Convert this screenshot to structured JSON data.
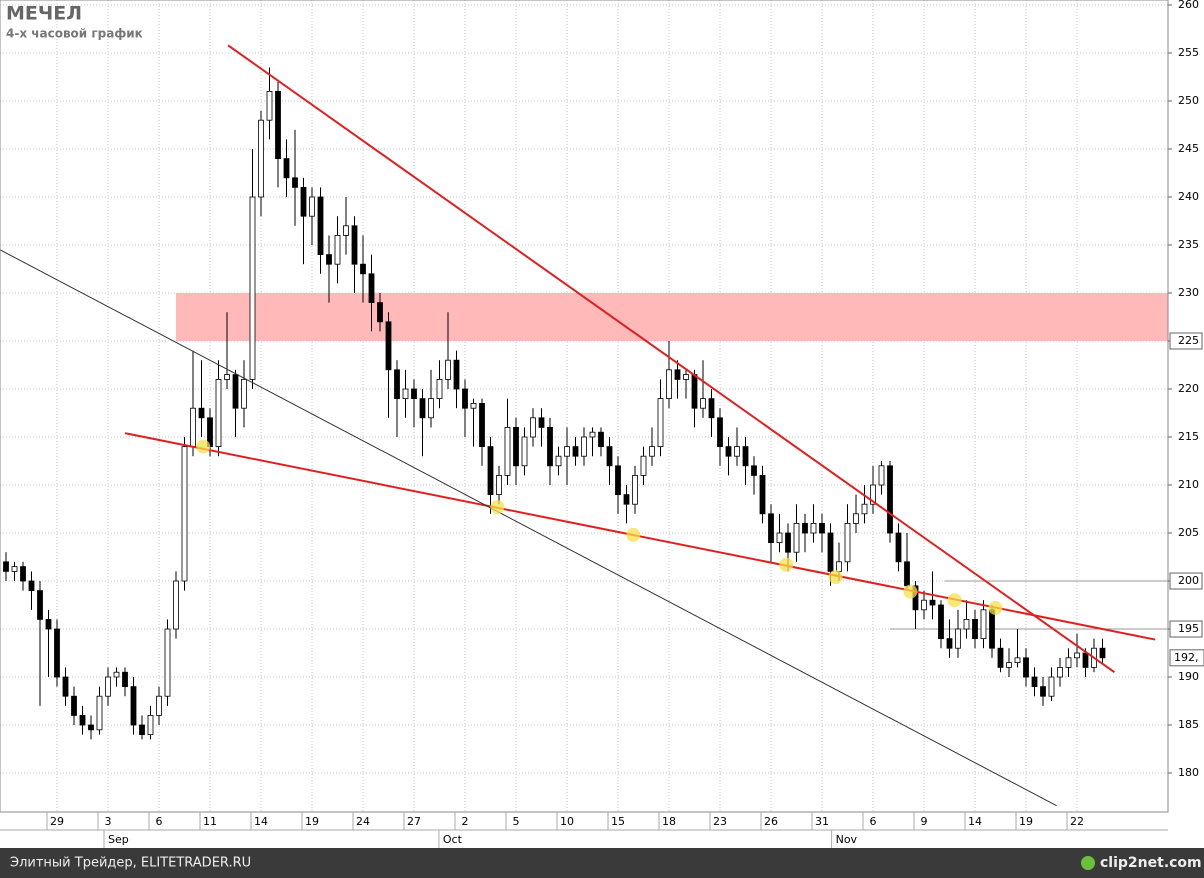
{
  "chart_data": {
    "type": "candlestick",
    "title": "МЕЧЕЛ",
    "subtitle": "4-х часовой график",
    "footer": "Элитный Трейдер, ELITETRADER.RU",
    "watermark": "clip2net.com",
    "last_price_label": "192,",
    "xlim": [
      -3.353,
      65.353
    ],
    "ylim": [
      175.94,
      260.52
    ],
    "yticks": [
      180,
      185,
      190,
      195,
      200,
      205,
      210,
      215,
      220,
      225,
      230,
      235,
      240,
      245,
      250,
      255,
      260
    ],
    "boxed_yticks": [
      225,
      200,
      195
    ],
    "xticks": [
      {
        "value": 0,
        "label": "29"
      },
      {
        "value": 3,
        "label": "3"
      },
      {
        "value": 6,
        "label": "6"
      },
      {
        "value": 9,
        "label": "11"
      },
      {
        "value": 12,
        "label": "14"
      },
      {
        "value": 15,
        "label": "19"
      },
      {
        "value": 18,
        "label": "24"
      },
      {
        "value": 21,
        "label": "27"
      },
      {
        "value": 24,
        "label": "2"
      },
      {
        "value": 27,
        "label": "5"
      },
      {
        "value": 30,
        "label": "10"
      },
      {
        "value": 33,
        "label": "15"
      },
      {
        "value": 36,
        "label": "18"
      },
      {
        "value": 39,
        "label": "23"
      },
      {
        "value": 42,
        "label": "26"
      },
      {
        "value": 45,
        "label": "31"
      },
      {
        "value": 48,
        "label": "6"
      },
      {
        "value": 51,
        "label": "9"
      },
      {
        "value": 54,
        "label": "14"
      },
      {
        "value": 57,
        "label": "19"
      },
      {
        "value": 60,
        "label": "22"
      }
    ],
    "month_labels": [
      {
        "x": 3,
        "label": "Sep"
      },
      {
        "x": 22.7,
        "label": "Oct"
      },
      {
        "x": 45.8,
        "label": "Nov"
      }
    ],
    "grid": true,
    "up_color": "#ffffff",
    "down_color": "#000000",
    "zone": {
      "from_x": 7,
      "ylim": [
        225,
        230
      ],
      "color": "#ffb9b9"
    },
    "levels": [
      {
        "value": 200,
        "from_x": 52.2,
        "color": "#999999"
      },
      {
        "value": 195,
        "from_x": 49,
        "color": "#999999"
      }
    ],
    "lines": [
      {
        "x": [
          10.06,
          62.2
        ],
        "y": [
          255.8,
          190.5
        ],
        "color": "#e02020"
      },
      {
        "x": [
          4,
          64.6
        ],
        "y": [
          215.4,
          193.9
        ],
        "color": "#e02020"
      },
      {
        "x": [
          -3.353,
          58.8
        ],
        "y": [
          234.5,
          176.6
        ],
        "color": "#333333"
      }
    ],
    "touch_points": {
      "color": "#f4e04a",
      "x": [
        8.6,
        25.9,
        33.9,
        42.9,
        45.8,
        50.2,
        52.8,
        55.2
      ],
      "y": [
        214,
        207.7,
        204.8,
        201.7,
        200.4,
        198.9,
        198,
        197.2
      ]
    },
    "x": [
      -3,
      -2.5,
      -2,
      -1.5,
      -1,
      -0.5,
      0,
      0.5,
      1,
      1.5,
      2,
      2.5,
      3,
      3.5,
      4,
      4.5,
      5,
      5.5,
      6,
      6.5,
      7,
      7.5,
      8,
      8.5,
      9,
      9.5,
      10,
      10.5,
      11,
      11.5,
      12,
      12.5,
      13,
      13.5,
      14,
      14.5,
      15,
      15.5,
      16,
      16.5,
      17,
      17.5,
      18,
      18.5,
      19,
      19.5,
      20,
      20.5,
      21,
      21.5,
      22,
      22.5,
      23,
      23.5,
      24,
      24.5,
      25,
      25.5,
      26,
      26.5,
      27,
      27.5,
      28,
      28.5,
      29,
      29.5,
      30,
      30.5,
      31,
      31.5,
      32,
      32.5,
      33,
      33.5,
      34,
      34.5,
      35,
      35.5,
      36,
      36.5,
      37,
      37.5,
      38,
      38.5,
      39,
      39.5,
      40,
      40.5,
      41,
      41.5,
      42,
      42.5,
      43,
      43.5,
      44,
      44.5,
      45,
      45.5,
      46,
      46.5,
      47,
      47.5,
      48,
      48.5,
      49,
      49.5,
      50,
      50.5,
      51,
      51.5,
      52,
      52.5,
      53,
      53.5,
      54,
      54.5,
      55,
      55.5,
      56,
      56.5,
      57,
      57.5,
      58,
      58.5,
      59,
      59.5,
      60,
      60.5,
      61,
      61.5
    ],
    "open": [
      202,
      201,
      201.5,
      200,
      199,
      196,
      195,
      190,
      188,
      186,
      185,
      184.5,
      188,
      190,
      190.5,
      189,
      185,
      184,
      186,
      188,
      195,
      200,
      214,
      218,
      217,
      214,
      221,
      221.5,
      218,
      221,
      240,
      248,
      251,
      244,
      242,
      241,
      238,
      240,
      234,
      233,
      236,
      237,
      233,
      232,
      229,
      227,
      222,
      219,
      220,
      219,
      217,
      219,
      221,
      223,
      220,
      218,
      218.5,
      214,
      209,
      211,
      216,
      212,
      215,
      217,
      216,
      212,
      213,
      214,
      213,
      215,
      215.5,
      214,
      212,
      209,
      208,
      211,
      213,
      214,
      219,
      222,
      221,
      221.5,
      218,
      219,
      217,
      214,
      213,
      214,
      212,
      211,
      207,
      204,
      205,
      203,
      206,
      205,
      206,
      205,
      201,
      202,
      206,
      207,
      208,
      210,
      212,
      205,
      202,
      199.5,
      197,
      198,
      197.5,
      194,
      193,
      195,
      196,
      194,
      197,
      193,
      191,
      191.5,
      192,
      190,
      189,
      188,
      190,
      191,
      192,
      192.5,
      191,
      193
    ],
    "high": [
      203,
      202,
      202,
      201,
      200,
      197,
      196,
      191,
      189,
      187,
      186,
      189,
      191,
      191,
      191,
      190,
      186,
      187,
      189,
      196,
      201,
      215,
      224,
      223,
      218,
      223,
      228,
      222,
      223,
      245,
      249,
      253.5,
      252,
      246,
      247,
      242,
      241,
      241,
      236,
      238,
      240,
      238,
      236,
      234,
      230,
      228,
      223,
      222,
      221,
      220,
      222,
      223,
      228,
      224,
      221,
      219,
      219,
      215,
      212,
      219,
      217,
      216,
      218,
      218,
      217,
      214,
      216,
      215,
      216,
      216,
      216,
      215,
      213,
      210,
      212,
      214,
      216,
      221,
      225,
      223,
      222,
      222,
      223,
      220,
      218,
      215,
      216,
      215,
      213,
      212,
      208,
      207,
      206,
      208,
      207,
      208,
      207,
      206,
      204,
      208,
      209,
      210,
      212,
      212.5,
      212.5,
      206,
      205,
      200,
      199,
      201,
      198,
      196,
      197,
      198,
      197,
      198,
      197.5,
      194,
      193,
      195,
      193,
      191,
      190,
      191,
      192,
      193,
      194.5,
      193,
      194,
      194
    ],
    "low": [
      200,
      200,
      199,
      197,
      187,
      190,
      189,
      187,
      185,
      184,
      183.5,
      184,
      187,
      189,
      188,
      184,
      183.5,
      183.5,
      185,
      187,
      194,
      199,
      213,
      215,
      213,
      213,
      220,
      215,
      216,
      220,
      238,
      246,
      241,
      240,
      237,
      233,
      235,
      232,
      229,
      231,
      234,
      230,
      229,
      226,
      226,
      217,
      215,
      217,
      216,
      213,
      216,
      218,
      220,
      218,
      215,
      214,
      212,
      207,
      208,
      210,
      210,
      211,
      214,
      214,
      210,
      211,
      210,
      212,
      212,
      213,
      213,
      210,
      207,
      206,
      207,
      210,
      212,
      213,
      218,
      219,
      219,
      216,
      217,
      215,
      212,
      211,
      212,
      210,
      209,
      206,
      202,
      203,
      201,
      202,
      203,
      204,
      203,
      199.5,
      200,
      201,
      205,
      206,
      207,
      209,
      204,
      201,
      199,
      195,
      196,
      196,
      193,
      192,
      192,
      194,
      193,
      193,
      192,
      190.5,
      190,
      191,
      189,
      188,
      187,
      187.5,
      189,
      190,
      191,
      190,
      190.5,
      191.5
    ],
    "close": [
      201,
      201.5,
      200,
      199,
      196,
      195,
      190,
      188,
      186,
      185,
      184.5,
      188,
      190,
      190.5,
      189,
      185,
      184,
      186,
      188,
      195,
      200,
      214,
      218,
      217,
      214,
      221,
      221.5,
      218,
      221,
      240,
      248,
      251,
      244,
      242,
      241,
      238,
      240,
      234,
      233,
      236,
      237,
      233,
      232,
      229,
      227,
      222,
      219,
      220,
      219,
      217,
      219,
      221,
      223,
      220,
      218,
      218.5,
      214,
      209,
      211,
      216,
      212,
      215,
      217,
      216,
      212,
      213,
      214,
      213,
      215,
      215.5,
      214,
      212,
      209,
      208,
      211,
      213,
      214,
      219,
      222,
      221,
      221.5,
      218,
      219,
      217,
      214,
      213,
      214,
      212,
      211,
      207,
      204,
      205,
      203,
      206,
      205,
      206,
      205,
      201,
      202,
      206,
      207,
      208,
      210,
      212,
      205,
      202,
      199.5,
      197,
      198,
      197.5,
      194,
      193,
      195,
      196,
      194,
      197,
      193,
      191,
      191.5,
      192,
      190,
      189,
      188,
      190,
      191,
      192,
      192.5,
      191,
      193,
      192
    ]
  }
}
